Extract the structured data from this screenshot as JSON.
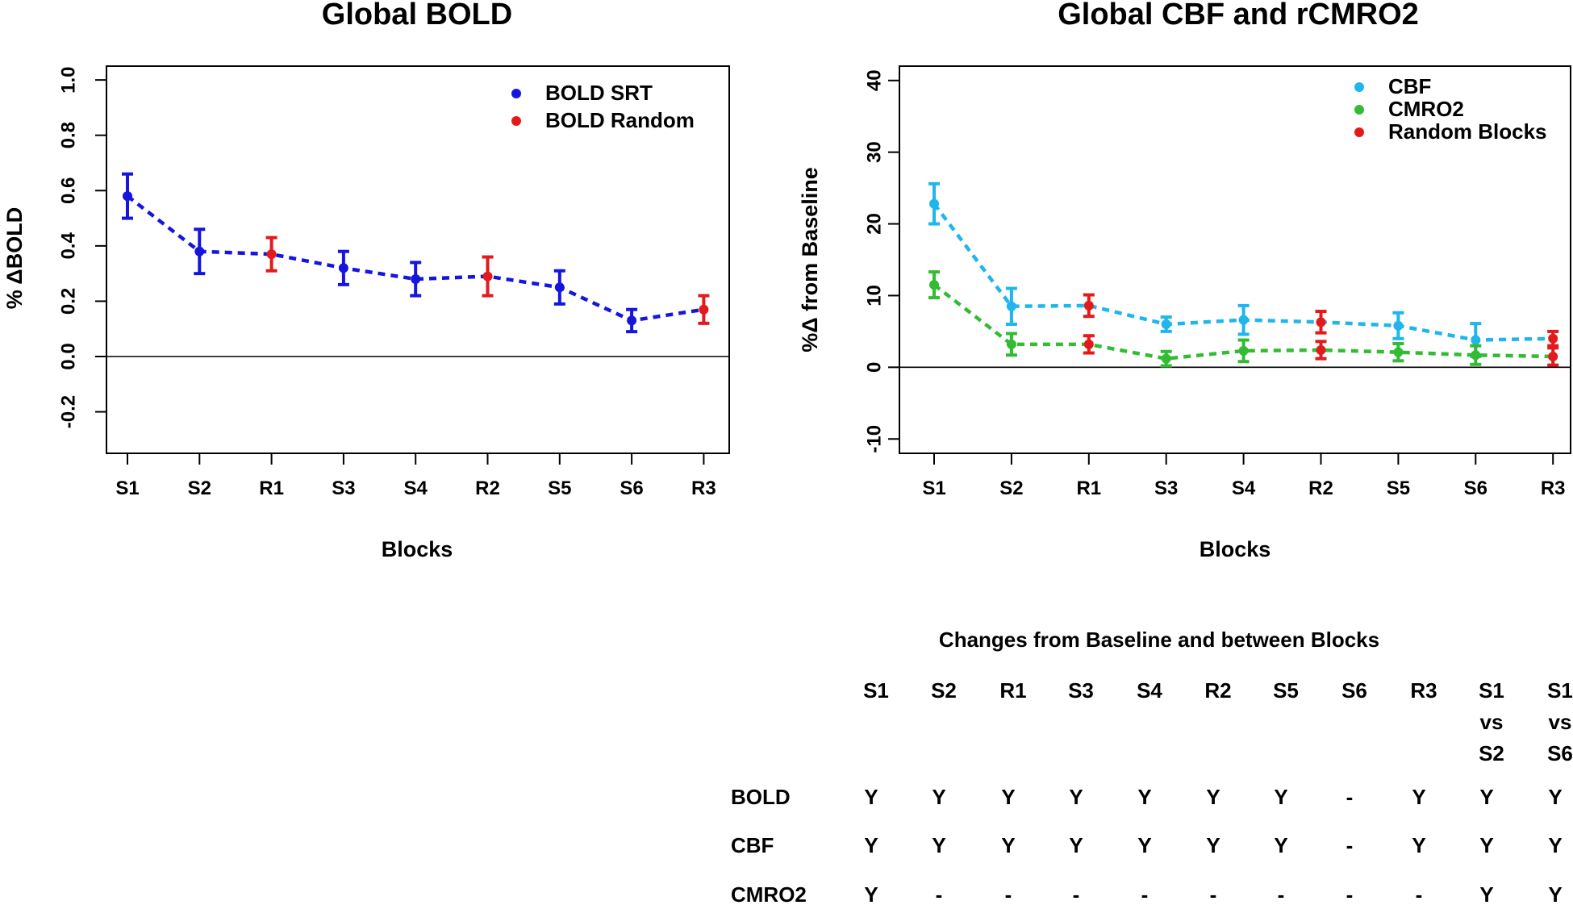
{
  "chart_data": [
    {
      "type": "line",
      "title": "Global BOLD",
      "xlabel": "Blocks",
      "ylabel": "% ΔBOLD",
      "categories": [
        "S1",
        "S2",
        "R1",
        "S3",
        "S4",
        "R2",
        "S5",
        "S6",
        "R3"
      ],
      "ylim": [
        -0.35,
        1.05
      ],
      "yticks": [
        -0.2,
        0.0,
        0.2,
        0.4,
        0.6,
        0.8,
        1.0
      ],
      "ytick_labels": [
        "-0.2",
        "0.0",
        "0.2",
        "0.4",
        "0.6",
        "0.8",
        "1.0"
      ],
      "hline": 0,
      "legend_position": "top-right",
      "series": [
        {
          "name": "BOLD",
          "values": [
            0.58,
            0.38,
            0.37,
            0.32,
            0.28,
            0.29,
            0.25,
            0.13,
            0.17
          ],
          "errors": [
            0.08,
            0.08,
            0.06,
            0.06,
            0.06,
            0.07,
            0.06,
            0.04,
            0.05
          ],
          "point_colors": [
            "#1515dd",
            "#1515dd",
            "#e31a1c",
            "#1515dd",
            "#1515dd",
            "#e31a1c",
            "#1515dd",
            "#1515dd",
            "#e31a1c"
          ],
          "line_color": "#1515dd"
        }
      ],
      "legend": [
        {
          "label": "BOLD SRT",
          "color": "#1515dd"
        },
        {
          "label": "BOLD Random",
          "color": "#e31a1c"
        }
      ]
    },
    {
      "type": "line",
      "title": "Global CBF and rCMRO2",
      "xlabel": "Blocks",
      "ylabel": "%Δ from Baseline",
      "categories": [
        "S1",
        "S2",
        "R1",
        "S3",
        "S4",
        "R2",
        "S5",
        "S6",
        "R3"
      ],
      "ylim": [
        -12,
        42
      ],
      "yticks": [
        -10,
        0,
        10,
        20,
        30,
        40
      ],
      "ytick_labels": [
        "-10",
        "0",
        "10",
        "20",
        "30",
        "40"
      ],
      "hline": 0,
      "legend_position": "top-right",
      "series": [
        {
          "name": "CBF",
          "values": [
            22.8,
            8.5,
            8.6,
            6.0,
            6.6,
            6.3,
            5.8,
            3.8,
            4.0
          ],
          "errors": [
            2.8,
            2.5,
            1.5,
            1.0,
            2.0,
            1.5,
            1.8,
            2.3,
            1.0
          ],
          "point_colors": [
            "#1eb6ec",
            "#1eb6ec",
            "#e31a1c",
            "#1eb6ec",
            "#1eb6ec",
            "#e31a1c",
            "#1eb6ec",
            "#1eb6ec",
            "#e31a1c"
          ],
          "line_color": "#1eb6ec"
        },
        {
          "name": "CMRO2",
          "values": [
            11.5,
            3.2,
            3.2,
            1.2,
            2.3,
            2.4,
            2.1,
            1.7,
            1.5
          ],
          "errors": [
            1.8,
            1.5,
            1.2,
            1.0,
            1.5,
            1.2,
            1.2,
            1.3,
            1.2
          ],
          "point_colors": [
            "#33bb33",
            "#33bb33",
            "#e31a1c",
            "#33bb33",
            "#33bb33",
            "#e31a1c",
            "#33bb33",
            "#33bb33",
            "#e31a1c"
          ],
          "line_color": "#33bb33"
        }
      ],
      "legend": [
        {
          "label": "CBF",
          "color": "#1eb6ec"
        },
        {
          "label": "CMRO2",
          "color": "#33bb33"
        },
        {
          "label": "Random Blocks",
          "color": "#e31a1c"
        }
      ]
    }
  ],
  "table": {
    "title": "Changes from Baseline and between Blocks",
    "columns": [
      [
        "S1"
      ],
      [
        "S2"
      ],
      [
        "R1"
      ],
      [
        "S3"
      ],
      [
        "S4"
      ],
      [
        "R2"
      ],
      [
        "S5"
      ],
      [
        "S6"
      ],
      [
        "R3"
      ],
      [
        "S1",
        "vs",
        "S2"
      ],
      [
        "S1",
        "vs",
        "S6"
      ]
    ],
    "rows": [
      {
        "label": "BOLD",
        "cells": [
          "Y",
          "Y",
          "Y",
          "Y",
          "Y",
          "Y",
          "Y",
          "-",
          "Y",
          "Y",
          "Y"
        ]
      },
      {
        "label": "CBF",
        "cells": [
          "Y",
          "Y",
          "Y",
          "Y",
          "Y",
          "Y",
          "Y",
          "-",
          "Y",
          "Y",
          "Y"
        ]
      },
      {
        "label": "CMRO2",
        "cells": [
          "Y",
          "-",
          "-",
          "-",
          "-",
          "-",
          "-",
          "-",
          "-",
          "Y",
          "Y"
        ]
      }
    ]
  }
}
